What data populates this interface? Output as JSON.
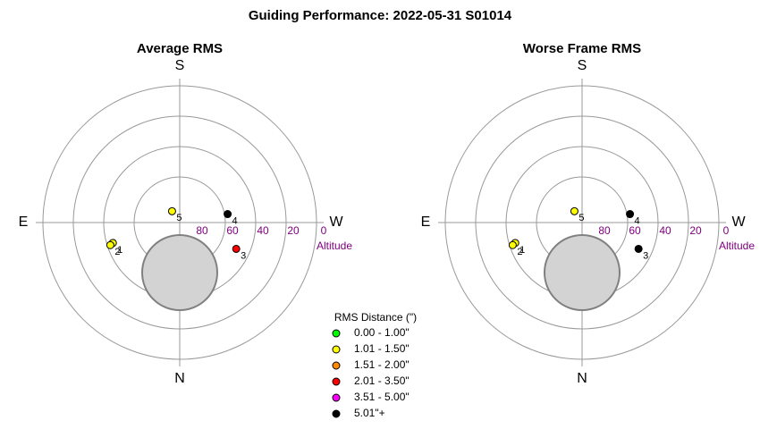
{
  "title": "Guiding Performance: 2022-05-31 S01014",
  "chart_data": [
    {
      "type": "polar",
      "title": "Average RMS",
      "directions": [
        "N",
        "E",
        "S",
        "W"
      ],
      "rlim": [
        90,
        0
      ],
      "rticks": [
        80,
        60,
        40,
        20,
        0
      ],
      "rings": [
        60,
        40,
        20,
        0
      ],
      "rlabel": "Altitude",
      "labels": [
        "1",
        "2",
        "3",
        "4",
        "5"
      ],
      "altitude": [
        44,
        42,
        49,
        58,
        81
      ],
      "azimuth": [
        73,
        72,
        295,
        260,
        146
      ],
      "colors": [
        "#ffff00",
        "#ffff00",
        "#ff0000",
        "#000000",
        "#ffff00"
      ]
    },
    {
      "type": "polar",
      "title": "Worse Frame RMS",
      "directions": [
        "N",
        "E",
        "S",
        "W"
      ],
      "rlim": [
        90,
        0
      ],
      "rticks": [
        80,
        60,
        40,
        20,
        0
      ],
      "rings": [
        60,
        40,
        20,
        0
      ],
      "rlabel": "Altitude",
      "labels": [
        "1",
        "2",
        "3",
        "4",
        "5"
      ],
      "altitude": [
        44,
        42,
        49,
        58,
        81
      ],
      "azimuth": [
        73,
        72,
        295,
        260,
        146
      ],
      "colors": [
        "#ffff00",
        "#ffff00",
        "#000000",
        "#000000",
        "#ffff00"
      ]
    }
  ],
  "legend": {
    "title": "RMS Distance (\")",
    "entries": [
      {
        "label": "0.00 - 1.00\"",
        "color": "#00ff00"
      },
      {
        "label": "1.01 - 1.50\"",
        "color": "#ffff00"
      },
      {
        "label": "1.51 - 2.00\"",
        "color": "#ff8c00"
      },
      {
        "label": "2.01 - 3.50\"",
        "color": "#ff0000"
      },
      {
        "label": "3.51 - 5.00\"",
        "color": "#ff00ff"
      },
      {
        "label": "5.01\"+",
        "color": "#000000"
      }
    ]
  }
}
